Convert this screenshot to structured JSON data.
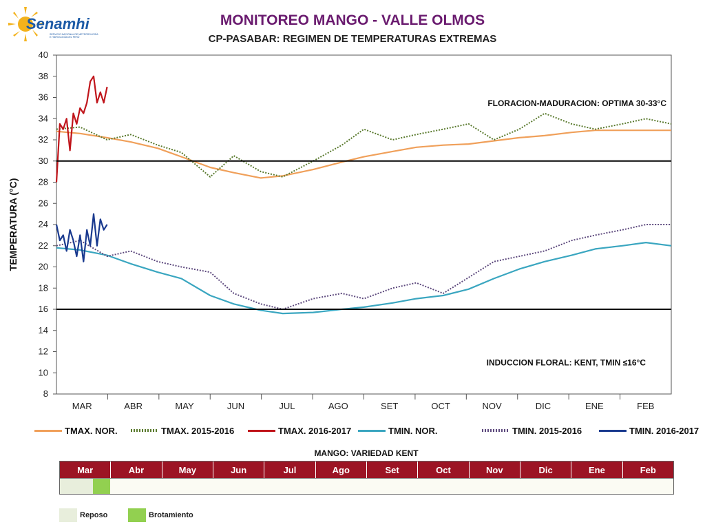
{
  "header": {
    "logo_text": "Senamhi",
    "logo_subtext": "SERVICIO NACIONAL DE METEOROLOGÍA E HIDROLOGÍA DEL PERÚ",
    "title": "MONITOREO MANGO - VALLE OLMOS",
    "subtitle": "CP-PASABAR: REGIMEN DE TEMPERATURAS EXTREMAS"
  },
  "chart_data": {
    "type": "line",
    "title": "CP-PASABAR: REGIMEN DE TEMPERATURAS EXTREMAS",
    "ylabel": "TEMPERATURA (°C)",
    "xlabel": "",
    "ylim": [
      8,
      40
    ],
    "yticks": [
      8,
      10,
      12,
      14,
      16,
      18,
      20,
      22,
      24,
      26,
      28,
      30,
      32,
      34,
      36,
      38,
      40
    ],
    "xlim": [
      1,
      365
    ],
    "months": [
      "MAR",
      "ABR",
      "MAY",
      "JUN",
      "JUL",
      "AGO",
      "SET",
      "OCT",
      "NOV",
      "DIC",
      "ENE",
      "FEB"
    ],
    "grid": false,
    "legend_position": "bottom",
    "threshold_lines": [
      {
        "value": 30,
        "label": "FLORACION-MADURACION: OPTIMA 30-33°C"
      },
      {
        "value": 16,
        "label": "INDUCCION FLORAL: KENT, TMIN ≤16°C"
      }
    ],
    "series": [
      {
        "name": "TMAX. NOR.",
        "color": "#f0a05a",
        "style": "solid",
        "x": [
          1,
          15,
          31,
          45,
          61,
          75,
          92,
          106,
          122,
          135,
          153,
          170,
          183,
          200,
          214,
          230,
          245,
          260,
          275,
          290,
          306,
          320,
          336,
          350,
          365
        ],
        "y": [
          32.8,
          32.6,
          32.2,
          31.8,
          31.2,
          30.4,
          29.4,
          28.9,
          28.4,
          28.6,
          29.2,
          29.9,
          30.4,
          30.9,
          31.3,
          31.5,
          31.6,
          31.9,
          32.2,
          32.4,
          32.7,
          32.9,
          32.9,
          32.9,
          32.9
        ]
      },
      {
        "name": "TMAX. 2015-2016",
        "color": "#5a7a2e",
        "style": "dotted",
        "x": [
          1,
          15,
          31,
          45,
          61,
          75,
          92,
          106,
          122,
          135,
          153,
          170,
          183,
          200,
          214,
          230,
          245,
          260,
          275,
          290,
          306,
          320,
          336,
          350,
          365
        ],
        "y": [
          33.0,
          33.2,
          32.0,
          32.5,
          31.5,
          30.8,
          28.5,
          30.5,
          29.0,
          28.5,
          30.0,
          31.5,
          33.0,
          32.0,
          32.5,
          33.0,
          33.5,
          32.0,
          33.0,
          34.5,
          33.5,
          33.0,
          33.5,
          34.0,
          33.5
        ]
      },
      {
        "name": "TMAX. 2016-2017",
        "color": "#c0151b",
        "style": "solid",
        "x": [
          1,
          3,
          5,
          7,
          9,
          11,
          13,
          15,
          17,
          19,
          21,
          23,
          25,
          27,
          29,
          31
        ],
        "y": [
          28.0,
          33.5,
          33.0,
          34.0,
          31.0,
          34.5,
          33.5,
          35.0,
          34.5,
          35.5,
          37.5,
          38.0,
          35.5,
          36.5,
          35.5,
          37.0
        ]
      },
      {
        "name": "TMIN. NOR.",
        "color": "#3aa6c0",
        "style": "solid",
        "x": [
          1,
          15,
          31,
          45,
          61,
          75,
          92,
          106,
          122,
          135,
          153,
          170,
          183,
          200,
          214,
          230,
          245,
          260,
          275,
          290,
          306,
          320,
          336,
          350,
          365
        ],
        "y": [
          21.8,
          21.6,
          21.1,
          20.3,
          19.5,
          18.9,
          17.3,
          16.5,
          15.9,
          15.6,
          15.7,
          16.0,
          16.2,
          16.6,
          17.0,
          17.3,
          17.9,
          18.9,
          19.8,
          20.5,
          21.1,
          21.7,
          22.0,
          22.3,
          22.0
        ]
      },
      {
        "name": "TMIN. 2015-2016",
        "color": "#5e4a7e",
        "style": "dotted",
        "x": [
          1,
          15,
          31,
          45,
          61,
          75,
          92,
          106,
          122,
          135,
          153,
          170,
          183,
          200,
          214,
          230,
          245,
          260,
          275,
          290,
          306,
          320,
          336,
          350,
          365
        ],
        "y": [
          22.0,
          22.5,
          21.0,
          21.5,
          20.5,
          20.0,
          19.5,
          17.5,
          16.5,
          16.0,
          17.0,
          17.5,
          17.0,
          18.0,
          18.5,
          17.5,
          19.0,
          20.5,
          21.0,
          21.5,
          22.5,
          23.0,
          23.5,
          24.0,
          24.0
        ]
      },
      {
        "name": "TMIN. 2016-2017",
        "color": "#1a3a8f",
        "style": "solid",
        "x": [
          1,
          3,
          5,
          7,
          9,
          11,
          13,
          15,
          17,
          19,
          21,
          23,
          25,
          27,
          29,
          31
        ],
        "y": [
          24.0,
          22.5,
          23.0,
          21.5,
          23.5,
          22.5,
          21.0,
          23.0,
          20.5,
          23.5,
          22.0,
          25.0,
          22.0,
          24.5,
          23.5,
          24.0
        ]
      }
    ]
  },
  "phenology": {
    "title": "MANGO: VARIEDAD KENT",
    "months": [
      "Mar",
      "Abr",
      "May",
      "Jun",
      "Jul",
      "Ago",
      "Set",
      "Oct",
      "Nov",
      "Dic",
      "Ene",
      "Feb"
    ],
    "phases": [
      {
        "name": "Reposo",
        "color": "#e8eedc",
        "start_month_fraction": 0.0,
        "end_month_fraction": 0.65
      },
      {
        "name": "Brotamiento",
        "color": "#92d050",
        "start_month_fraction": 0.65,
        "end_month_fraction": 0.98
      }
    ]
  }
}
